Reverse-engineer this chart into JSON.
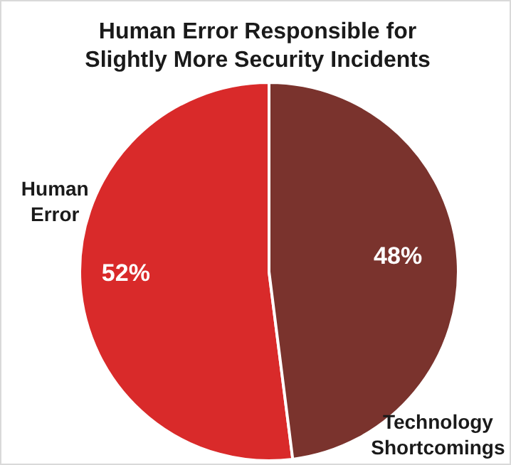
{
  "chart_data": {
    "type": "pie",
    "title": "Human Error Responsible for Slightly More Security Incidents",
    "categories": [
      "Human Error",
      "Technology Shortcomings"
    ],
    "values": [
      52,
      48
    ],
    "colors": [
      "#d92a2a",
      "#7a332d"
    ],
    "value_labels": [
      "52%",
      "48%"
    ]
  }
}
